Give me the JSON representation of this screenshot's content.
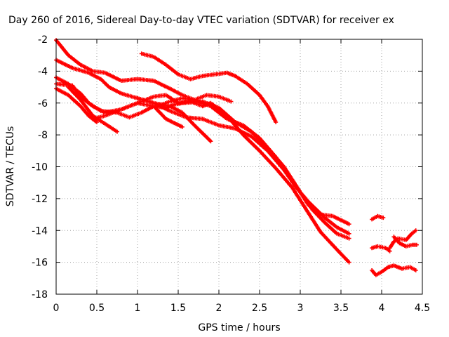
{
  "chart_data": {
    "type": "scatter",
    "title": "Day 260 of 2016, Sidereal Day-to-day VTEC variation (SDTVAR) for receiver ex",
    "xlabel": "GPS time / hours",
    "ylabel": "SDTVAR / TECUs",
    "xlim": [
      0,
      4.5
    ],
    "ylim": [
      -18,
      -2
    ],
    "xticks": [
      0,
      0.5,
      1,
      1.5,
      2,
      2.5,
      3,
      3.5,
      4,
      4.5
    ],
    "xtick_labels": [
      "0",
      "0.5",
      "1",
      "1.5",
      "2",
      "2.5",
      "3",
      "3.5",
      "4",
      "4.5"
    ],
    "yticks": [
      -18,
      -16,
      -14,
      -12,
      -10,
      -8,
      -6,
      -4,
      -2
    ],
    "ytick_labels": [
      "-18",
      "-16",
      "-14",
      "-12",
      "-10",
      "-8",
      "-6",
      "-4",
      "-2"
    ],
    "grid": true,
    "marker": "plus",
    "color": "#ff0000",
    "series": [
      {
        "name": "s1",
        "points": [
          [
            0,
            -2.05
          ],
          [
            0.15,
            -3.0
          ],
          [
            0.3,
            -3.6
          ],
          [
            0.45,
            -4.0
          ],
          [
            0.6,
            -4.1
          ],
          [
            0.8,
            -4.6
          ],
          [
            1.0,
            -4.5
          ],
          [
            1.2,
            -4.6
          ],
          [
            1.4,
            -5.1
          ],
          [
            1.55,
            -5.5
          ],
          [
            1.7,
            -5.8
          ],
          [
            1.9,
            -6.2
          ],
          [
            2.1,
            -7.0
          ],
          [
            2.3,
            -7.4
          ],
          [
            2.5,
            -8.2
          ],
          [
            2.7,
            -9.4
          ],
          [
            2.9,
            -10.8
          ],
          [
            3.0,
            -11.6
          ],
          [
            3.1,
            -12.4
          ],
          [
            3.25,
            -13.0
          ],
          [
            3.4,
            -13.1
          ],
          [
            3.6,
            -13.6
          ]
        ]
      },
      {
        "name": "s2",
        "points": [
          [
            0,
            -3.3
          ],
          [
            0.2,
            -3.8
          ],
          [
            0.4,
            -4.1
          ],
          [
            0.55,
            -4.5
          ],
          [
            0.65,
            -5.0
          ],
          [
            0.8,
            -5.4
          ],
          [
            1.0,
            -5.7
          ],
          [
            1.2,
            -6.0
          ],
          [
            1.4,
            -6.5
          ],
          [
            1.6,
            -6.9
          ],
          [
            1.8,
            -7.0
          ],
          [
            2.0,
            -7.4
          ],
          [
            2.2,
            -7.6
          ],
          [
            2.4,
            -8.1
          ],
          [
            2.6,
            -9.0
          ],
          [
            2.8,
            -10.2
          ],
          [
            2.95,
            -11.3
          ],
          [
            3.1,
            -12.2
          ],
          [
            3.3,
            -13.2
          ],
          [
            3.45,
            -13.8
          ],
          [
            3.6,
            -14.2
          ]
        ]
      },
      {
        "name": "s3",
        "points": [
          [
            0,
            -4.4
          ],
          [
            0.15,
            -4.8
          ],
          [
            0.3,
            -5.4
          ],
          [
            0.4,
            -6.0
          ],
          [
            0.55,
            -6.5
          ],
          [
            0.75,
            -6.6
          ],
          [
            0.9,
            -6.9
          ],
          [
            1.05,
            -6.6
          ],
          [
            1.2,
            -6.2
          ],
          [
            1.35,
            -6.3
          ],
          [
            1.45,
            -6.1
          ],
          [
            1.55,
            -6.0
          ],
          [
            1.8,
            -5.9
          ],
          [
            2.0,
            -6.3
          ],
          [
            2.2,
            -7.2
          ],
          [
            2.4,
            -7.8
          ],
          [
            2.6,
            -8.8
          ],
          [
            2.8,
            -10.0
          ],
          [
            3.0,
            -11.6
          ],
          [
            3.15,
            -12.7
          ],
          [
            3.3,
            -13.5
          ],
          [
            3.45,
            -14.2
          ],
          [
            3.6,
            -14.5
          ]
        ]
      },
      {
        "name": "s4",
        "points": [
          [
            0,
            -4.8
          ],
          [
            0.2,
            -4.9
          ],
          [
            0.3,
            -5.6
          ],
          [
            0.45,
            -6.2
          ],
          [
            0.6,
            -6.6
          ],
          [
            0.8,
            -6.4
          ],
          [
            1.0,
            -6.0
          ],
          [
            1.2,
            -5.6
          ],
          [
            1.35,
            -5.5
          ],
          [
            1.5,
            -6.0
          ],
          [
            1.65,
            -5.9
          ],
          [
            1.8,
            -6.2
          ],
          [
            1.9,
            -6.0
          ],
          [
            2.1,
            -6.8
          ],
          [
            2.3,
            -8.0
          ],
          [
            2.5,
            -9.0
          ],
          [
            2.7,
            -10.1
          ],
          [
            2.9,
            -11.3
          ],
          [
            3.05,
            -12.5
          ],
          [
            3.25,
            -14.1
          ],
          [
            3.45,
            -15.2
          ],
          [
            3.6,
            -16.0
          ]
        ]
      },
      {
        "name": "s5",
        "points": [
          [
            0,
            -5.1
          ],
          [
            0.15,
            -5.5
          ],
          [
            0.3,
            -6.2
          ],
          [
            0.4,
            -6.8
          ],
          [
            0.5,
            -7.2
          ]
        ]
      },
      {
        "name": "s6",
        "points": [
          [
            0.15,
            -5.0
          ],
          [
            0.3,
            -5.8
          ],
          [
            0.45,
            -6.8
          ],
          [
            0.6,
            -7.3
          ],
          [
            0.75,
            -7.8
          ]
        ]
      },
      {
        "name": "s7",
        "points": [
          [
            0.45,
            -7.0
          ],
          [
            0.6,
            -6.8
          ],
          [
            0.8,
            -6.4
          ],
          [
            1.0,
            -6.0
          ],
          [
            1.2,
            -6.2
          ],
          [
            1.35,
            -7.0
          ],
          [
            1.55,
            -7.5
          ]
        ]
      },
      {
        "name": "s8",
        "points": [
          [
            1.0,
            -5.7
          ],
          [
            1.2,
            -6.0
          ],
          [
            1.4,
            -6.2
          ],
          [
            1.55,
            -6.6
          ],
          [
            1.7,
            -7.4
          ],
          [
            1.9,
            -8.4
          ]
        ]
      },
      {
        "name": "s9",
        "points": [
          [
            1.05,
            -2.9
          ],
          [
            1.2,
            -3.1
          ],
          [
            1.35,
            -3.6
          ],
          [
            1.5,
            -4.2
          ],
          [
            1.65,
            -4.5
          ],
          [
            1.8,
            -4.3
          ],
          [
            1.95,
            -4.2
          ],
          [
            2.1,
            -4.1
          ],
          [
            2.2,
            -4.3
          ],
          [
            2.35,
            -4.8
          ],
          [
            2.5,
            -5.5
          ],
          [
            2.6,
            -6.2
          ],
          [
            2.7,
            -7.2
          ]
        ]
      },
      {
        "name": "s10",
        "points": [
          [
            1.25,
            -6.2
          ],
          [
            1.4,
            -5.9
          ],
          [
            1.55,
            -5.7
          ],
          [
            1.7,
            -5.8
          ],
          [
            1.85,
            -5.5
          ],
          [
            2.0,
            -5.6
          ],
          [
            2.15,
            -5.9
          ]
        ]
      },
      {
        "name": "s11",
        "points": [
          [
            3.88,
            -13.3
          ],
          [
            3.95,
            -13.1
          ],
          [
            4.02,
            -13.2
          ]
        ]
      },
      {
        "name": "s12",
        "points": [
          [
            3.88,
            -15.1
          ],
          [
            3.95,
            -15.0
          ],
          [
            4.05,
            -15.1
          ],
          [
            4.1,
            -15.3
          ]
        ]
      },
      {
        "name": "s13",
        "points": [
          [
            3.88,
            -16.5
          ],
          [
            3.93,
            -16.8
          ],
          [
            4.0,
            -16.6
          ],
          [
            4.08,
            -16.3
          ],
          [
            4.15,
            -16.2
          ],
          [
            4.25,
            -16.4
          ],
          [
            4.35,
            -16.3
          ],
          [
            4.42,
            -16.5
          ]
        ]
      },
      {
        "name": "s14",
        "points": [
          [
            4.1,
            -15.1
          ],
          [
            4.15,
            -14.7
          ],
          [
            4.2,
            -14.5
          ],
          [
            4.3,
            -14.6
          ],
          [
            4.37,
            -14.2
          ],
          [
            4.42,
            -14.0
          ]
        ]
      },
      {
        "name": "s15",
        "points": [
          [
            4.15,
            -14.4
          ],
          [
            4.22,
            -14.8
          ],
          [
            4.3,
            -15.0
          ],
          [
            4.38,
            -14.9
          ],
          [
            4.43,
            -14.9
          ]
        ]
      }
    ]
  }
}
